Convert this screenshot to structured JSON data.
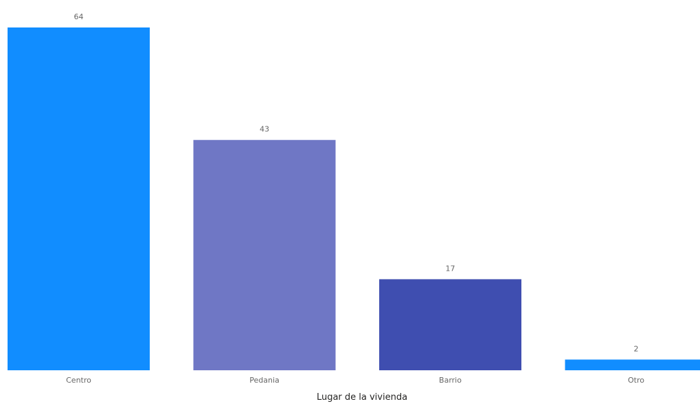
{
  "chart_data": {
    "type": "bar",
    "categories": [
      "Centro",
      "Pedania",
      "Barrio",
      "Otro"
    ],
    "values": [
      64,
      43,
      17,
      2
    ],
    "data_labels": [
      "64",
      "43",
      "17",
      "2"
    ],
    "title": "",
    "xlabel": "Lugar de la vivienda",
    "ylabel": "",
    "ylim": [
      0,
      64
    ],
    "grid": false,
    "legend": "none",
    "bar_colors": [
      "#118DFF",
      "#6F77C5",
      "#3F4EB0",
      "#118DFF"
    ]
  }
}
